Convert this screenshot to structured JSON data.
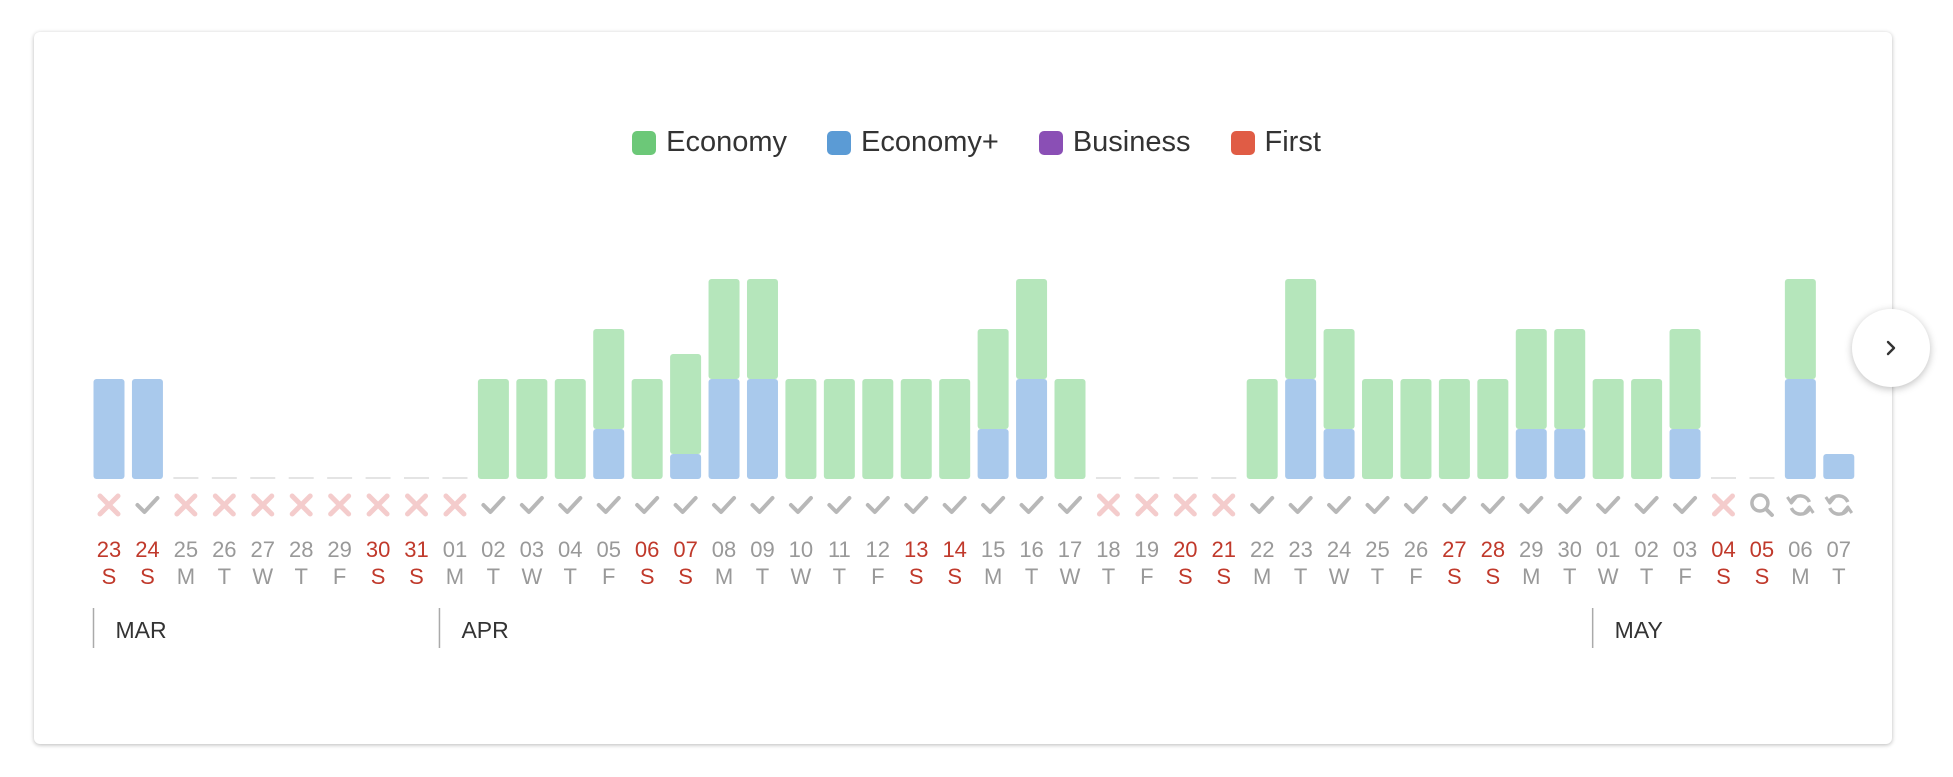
{
  "legend": [
    {
      "name": "Economy",
      "color": "#6cc878"
    },
    {
      "name": "Economy+",
      "color": "#5b9bd5"
    },
    {
      "name": "Business",
      "color": "#8a4fb5"
    },
    {
      "name": "First",
      "color": "#e05c45"
    }
  ],
  "icons": {
    "next": "chevron-right-icon"
  },
  "chart_data": {
    "type": "bar",
    "stacked": true,
    "note_units": "relative availability level (0-8)",
    "categories": [
      "23",
      "24",
      "25",
      "26",
      "27",
      "28",
      "29",
      "30",
      "31",
      "01",
      "02",
      "03",
      "04",
      "05",
      "06",
      "07",
      "08",
      "09",
      "10",
      "11",
      "12",
      "13",
      "14",
      "15",
      "16",
      "17",
      "18",
      "19",
      "20",
      "21",
      "22",
      "23",
      "24",
      "25",
      "26",
      "27",
      "28",
      "29",
      "30",
      "01",
      "02",
      "03",
      "04",
      "05",
      "06",
      "07"
    ],
    "weekdays": [
      "S",
      "S",
      "M",
      "T",
      "W",
      "T",
      "F",
      "S",
      "S",
      "M",
      "T",
      "W",
      "T",
      "F",
      "S",
      "S",
      "M",
      "T",
      "W",
      "T",
      "F",
      "S",
      "S",
      "M",
      "T",
      "W",
      "T",
      "F",
      "S",
      "S",
      "M",
      "T",
      "W",
      "T",
      "F",
      "S",
      "S",
      "M",
      "T",
      "W",
      "T",
      "F",
      "S",
      "S",
      "M",
      "T"
    ],
    "status": [
      "x",
      "check",
      "x",
      "x",
      "x",
      "x",
      "x",
      "x",
      "x",
      "x",
      "check",
      "check",
      "check",
      "check",
      "check",
      "check",
      "check",
      "check",
      "check",
      "check",
      "check",
      "check",
      "check",
      "check",
      "check",
      "check",
      "x",
      "x",
      "x",
      "x",
      "check",
      "check",
      "check",
      "check",
      "check",
      "check",
      "check",
      "check",
      "check",
      "check",
      "check",
      "check",
      "x",
      "search",
      "refresh",
      "refresh"
    ],
    "series": [
      {
        "name": "Economy+",
        "color_fill": "#a9c9ec",
        "values": [
          4,
          4,
          0,
          0,
          0,
          0,
          0,
          0,
          0,
          0,
          0,
          0,
          0,
          2,
          0,
          1,
          4,
          4,
          0,
          0,
          0,
          0,
          0,
          2,
          4,
          0,
          0,
          0,
          0,
          0,
          0,
          4,
          2,
          0,
          0,
          0,
          0,
          2,
          2,
          0,
          0,
          2,
          0,
          0,
          4,
          1
        ]
      },
      {
        "name": "Economy",
        "color_fill": "#b5e6bb",
        "values": [
          0,
          0,
          0,
          0,
          0,
          0,
          0,
          0,
          0,
          0,
          4,
          4,
          4,
          4,
          4,
          4,
          4,
          4,
          4,
          4,
          4,
          4,
          4,
          4,
          4,
          4,
          0,
          0,
          0,
          0,
          4,
          4,
          4,
          4,
          4,
          4,
          4,
          4,
          4,
          4,
          4,
          4,
          0,
          0,
          4,
          0
        ]
      },
      {
        "name": "Business",
        "values": [
          0,
          0,
          0,
          0,
          0,
          0,
          0,
          0,
          0,
          0,
          0,
          0,
          0,
          0,
          0,
          0,
          0,
          0,
          0,
          0,
          0,
          0,
          0,
          0,
          0,
          0,
          0,
          0,
          0,
          0,
          0,
          0,
          0,
          0,
          0,
          0,
          0,
          0,
          0,
          0,
          0,
          0,
          0,
          0,
          0,
          0
        ]
      },
      {
        "name": "First",
        "values": [
          0,
          0,
          0,
          0,
          0,
          0,
          0,
          0,
          0,
          0,
          0,
          0,
          0,
          0,
          0,
          0,
          0,
          0,
          0,
          0,
          0,
          0,
          0,
          0,
          0,
          0,
          0,
          0,
          0,
          0,
          0,
          0,
          0,
          0,
          0,
          0,
          0,
          0,
          0,
          0,
          0,
          0,
          0,
          0,
          0,
          0
        ]
      }
    ],
    "months": [
      {
        "label": "MAR",
        "start_index": 0
      },
      {
        "label": "APR",
        "start_index": 9
      },
      {
        "label": "MAY",
        "start_index": 39
      }
    ],
    "weekend_color": "#c0392b",
    "weekday_color": "#999999",
    "ylim": [
      0,
      8
    ],
    "grid": false,
    "legend_position": "top-center"
  }
}
